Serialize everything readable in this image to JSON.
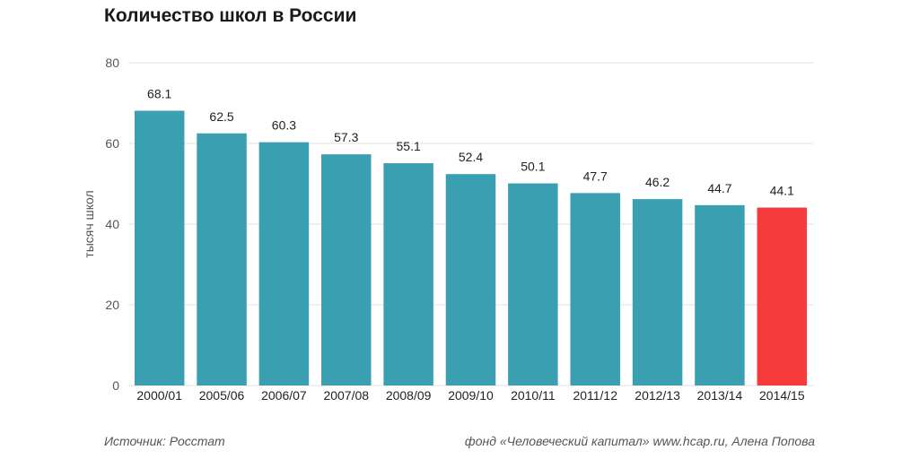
{
  "title": "Количество школ в России",
  "source": "Источник: Росстат",
  "credit": "фонд «Человеческий капитал» www.hcap.ru, Алена Попова",
  "colors": {
    "bar": "#3a9fb1",
    "highlight": "#f53b3b",
    "grid": "#e2e2e2",
    "text": "#333333"
  },
  "chart_data": {
    "type": "bar",
    "title": "Количество школ в России",
    "ylabel": "тысяч школ",
    "xlabel": "",
    "ylim": [
      0,
      80
    ],
    "yticks": [
      0,
      20,
      40,
      60,
      80
    ],
    "grid": true,
    "categories": [
      "2000/01",
      "2005/06",
      "2006/07",
      "2007/08",
      "2008/09",
      "2009/10",
      "2010/11",
      "2011/12",
      "2012/13",
      "2013/14",
      "2014/15"
    ],
    "values": [
      68.1,
      62.5,
      60.3,
      57.3,
      55.1,
      52.4,
      50.1,
      47.7,
      46.2,
      44.7,
      44.1
    ],
    "value_labels": [
      "68.1",
      "62.5",
      "60.3",
      "57.3",
      "55.1",
      "52.4",
      "50.1",
      "47.7",
      "46.2",
      "44.7",
      "44.1"
    ],
    "highlight_category": "2014/15"
  }
}
